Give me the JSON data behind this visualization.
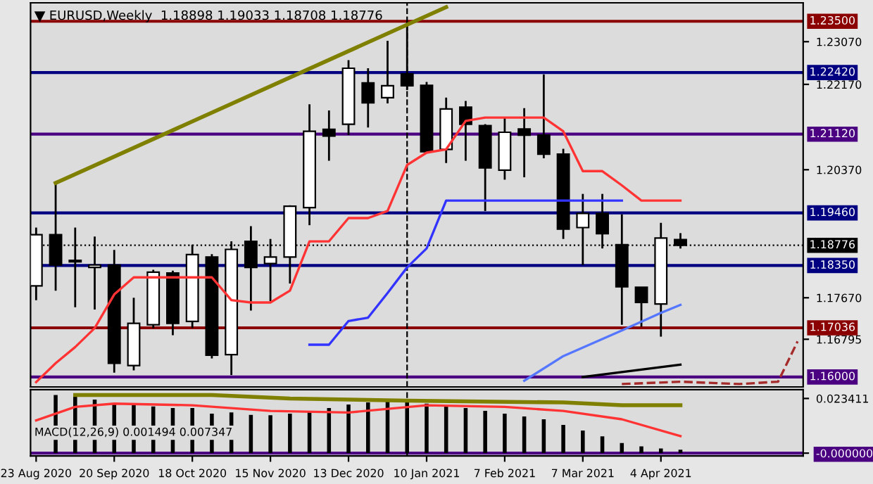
{
  "chart_data": [
    {
      "type": "candlestick",
      "title": "EURUSD,Weekly  1.18898 1.19033 1.18708 1.18776",
      "x": [
        "2020-08-23",
        "2020-08-30",
        "2020-09-06",
        "2020-09-13",
        "2020-09-20",
        "2020-09-27",
        "2020-10-04",
        "2020-10-11",
        "2020-10-18",
        "2020-10-25",
        "2020-11-01",
        "2020-11-08",
        "2020-11-15",
        "2020-11-22",
        "2020-11-29",
        "2020-12-06",
        "2020-12-13",
        "2020-12-20",
        "2020-12-27",
        "2021-01-03",
        "2021-01-10",
        "2021-01-17",
        "2021-01-24",
        "2021-01-31",
        "2021-02-07",
        "2021-02-14",
        "2021-02-21",
        "2021-02-28",
        "2021-03-07",
        "2021-03-14",
        "2021-03-21",
        "2021-03-28",
        "2021-04-04",
        "2021-04-11"
      ],
      "ohlc": [
        [
          1.1792,
          1.1915,
          1.1762,
          1.19
        ],
        [
          1.19,
          1.2009,
          1.1782,
          1.1836
        ],
        [
          1.1846,
          1.1915,
          1.1747,
          1.1843
        ],
        [
          1.1831,
          1.1896,
          1.1742,
          1.1836
        ],
        [
          1.1836,
          1.1868,
          1.1609,
          1.1629
        ],
        [
          1.1624,
          1.1767,
          1.1614,
          1.1713
        ],
        [
          1.171,
          1.1826,
          1.1703,
          1.1821
        ],
        [
          1.1819,
          1.1824,
          1.1688,
          1.1713
        ],
        [
          1.1717,
          1.1879,
          1.1703,
          1.1858
        ],
        [
          1.1853,
          1.1859,
          1.1639,
          1.1646
        ],
        [
          1.1647,
          1.1886,
          1.1604,
          1.1869
        ],
        [
          1.1886,
          1.1918,
          1.174,
          1.1831
        ],
        [
          1.1839,
          1.1891,
          1.176,
          1.1853
        ],
        [
          1.1853,
          1.1962,
          1.1797,
          1.196
        ],
        [
          1.1957,
          1.2175,
          1.192,
          1.2118
        ],
        [
          1.2122,
          1.2162,
          1.2056,
          1.2108
        ],
        [
          1.2133,
          1.2268,
          1.211,
          1.2251
        ],
        [
          1.222,
          1.2251,
          1.2126,
          1.2178
        ],
        [
          1.2189,
          1.2309,
          1.2177,
          1.2214
        ],
        [
          1.2239,
          1.2349,
          1.2205,
          1.2214
        ],
        [
          1.2215,
          1.2222,
          1.2073,
          1.2075
        ],
        [
          1.208,
          1.2189,
          1.2051,
          1.2165
        ],
        [
          1.2169,
          1.2182,
          1.2056,
          1.2133
        ],
        [
          1.213,
          1.2133,
          1.195,
          1.2041
        ],
        [
          1.2036,
          1.2148,
          1.2016,
          1.2116
        ],
        [
          1.2123,
          1.2167,
          1.2021,
          1.211
        ],
        [
          1.211,
          1.2238,
          1.2061,
          1.207
        ],
        [
          1.207,
          1.2081,
          1.1891,
          1.1912
        ],
        [
          1.1915,
          1.1986,
          1.1836,
          1.1945
        ],
        [
          1.1945,
          1.1986,
          1.1871,
          1.1902
        ],
        [
          1.1879,
          1.1943,
          1.171,
          1.179
        ],
        [
          1.1789,
          1.1789,
          1.1706,
          1.1757
        ],
        [
          1.1754,
          1.1925,
          1.1685,
          1.1893
        ],
        [
          1.18898,
          1.19033,
          1.18708,
          1.18776
        ]
      ],
      "series": [
        {
          "type": "line",
          "color": "#ff3333",
          "x": [
            "2020-08-23",
            "2020-08-30",
            "2020-09-06",
            "2020-09-13",
            "2020-09-20",
            "2020-09-27",
            "2020-10-04",
            "2020-10-11",
            "2020-10-18",
            "2020-10-25",
            "2020-11-01",
            "2020-11-08",
            "2020-11-15",
            "2020-11-22",
            "2020-11-29",
            "2020-12-06",
            "2020-12-13",
            "2020-12-20",
            "2020-12-27",
            "2021-01-03",
            "2021-01-10",
            "2021-01-17",
            "2021-01-24",
            "2021-01-31",
            "2021-02-07",
            "2021-02-14",
            "2021-02-21",
            "2021-02-28",
            "2021-03-07",
            "2021-03-14",
            "2021-03-21",
            "2021-03-28",
            "2021-04-04",
            "2021-04-11"
          ],
          "values": [
            1.1589,
            1.1629,
            1.1663,
            1.1703,
            1.1774,
            1.181,
            1.181,
            1.181,
            1.181,
            1.181,
            1.1762,
            1.1757,
            1.1757,
            1.1782,
            1.1886,
            1.1886,
            1.1935,
            1.1935,
            1.195,
            1.2047,
            1.2073,
            1.208,
            1.214,
            1.2147,
            1.2147,
            1.2147,
            1.2147,
            1.2118,
            1.2034,
            1.2034,
            1.2004,
            1.1972,
            1.1972,
            1.1972
          ]
        },
        {
          "type": "line",
          "color": "#3333ff",
          "x": [
            "2020-11-29",
            "2020-12-06",
            "2020-12-13",
            "2020-12-20",
            "2020-12-27",
            "2021-01-03",
            "2021-01-10",
            "2021-01-17",
            "2021-03-21"
          ],
          "values": [
            1.1668,
            1.1668,
            1.1718,
            1.1725,
            1.1777,
            1.1831,
            1.1871,
            1.1972,
            1.1972
          ]
        },
        {
          "type": "line",
          "color": "#5577ff",
          "x": [
            "2021-02-14",
            "2021-02-28",
            "2021-03-21",
            "2021-04-04",
            "2021-04-11"
          ],
          "values": [
            1.1592,
            1.1644,
            1.1698,
            1.1735,
            1.1752
          ]
        },
        {
          "type": "line",
          "color": "#000000",
          "x": [
            "2021-03-07",
            "2021-04-11"
          ],
          "values": [
            1.16,
            1.1626
          ]
        },
        {
          "type": "line",
          "color": "#a52a2a",
          "line_style": "dashed",
          "x": [
            "2021-03-21",
            "2021-04-11",
            "2021-05-02",
            "2021-05-16",
            "2021-05-23"
          ],
          "values": [
            1.1585,
            1.159,
            1.1585,
            1.159,
            1.1675
          ]
        },
        {
          "type": "line",
          "color": "#808000",
          "x": [
            "2020-08-30",
            "2021-01-17"
          ],
          "values": [
            1.2009,
            1.238
          ]
        }
      ],
      "ref_lines": [
        {
          "axis": "y",
          "value": 1.235,
          "label": "1.23500",
          "color": "#8b0000"
        },
        {
          "axis": "y",
          "value": 1.2242,
          "label": "1.22420",
          "color": "#000080"
        },
        {
          "axis": "y",
          "value": 1.2112,
          "label": "1.21120",
          "color": "#4b0082"
        },
        {
          "axis": "y",
          "value": 1.1946,
          "label": "1.19460",
          "color": "#000080"
        },
        {
          "axis": "y",
          "value": 1.18776,
          "label": "1.18776",
          "color": "#000000",
          "line_style": "dotted"
        },
        {
          "axis": "y",
          "value": 1.1835,
          "label": "1.18350",
          "color": "#000080"
        },
        {
          "axis": "y",
          "value": 1.17036,
          "label": "1.17036",
          "color": "#8b0000"
        },
        {
          "axis": "y",
          "value": 1.16,
          "label": "1.16000",
          "color": "#4b0082"
        },
        {
          "axis": "x",
          "value": "2021-01-03",
          "color": "#000000",
          "line_style": "dashed"
        }
      ],
      "xlim": [
        "2020-08-21",
        "2021-05-25"
      ],
      "ylim": [
        1.1579,
        1.2389
      ],
      "yticks": [
        {
          "value": 1.2307,
          "label": "1.23070"
        },
        {
          "value": 1.2217,
          "label": "1.22170"
        },
        {
          "value": 1.2037,
          "label": "1.20370"
        },
        {
          "value": 1.1767,
          "label": "1.17670"
        },
        {
          "value": 1.16795,
          "label": "1.16795"
        }
      ],
      "tick_labels": "y"
    },
    {
      "type": "bar",
      "title": "MACD(12,26,9) 0.001494 0.007347",
      "series": [
        {
          "type": "bar",
          "color": "#000000",
          "x": [
            "2020-08-30",
            "2020-09-06",
            "2020-09-13",
            "2020-09-20",
            "2020-09-27",
            "2020-10-04",
            "2020-10-11",
            "2020-10-18",
            "2020-10-25",
            "2020-11-01",
            "2020-11-08",
            "2020-11-15",
            "2020-11-22",
            "2020-11-29",
            "2020-12-06",
            "2020-12-13",
            "2020-12-20",
            "2020-12-27",
            "2021-01-03",
            "2021-01-10",
            "2021-01-17",
            "2021-01-24",
            "2021-01-31",
            "2021-02-07",
            "2021-02-14",
            "2021-02-21",
            "2021-02-28",
            "2021-03-07",
            "2021-03-14",
            "2021-03-21",
            "2021-03-28",
            "2021-04-04",
            "2021-04-11"
          ],
          "values": [
            0.0249,
            0.0249,
            0.0229,
            0.0212,
            0.0212,
            0.02,
            0.0193,
            0.0193,
            0.0169,
            0.0174,
            0.0164,
            0.0162,
            0.0169,
            0.0181,
            0.0193,
            0.0208,
            0.0217,
            0.0222,
            0.0225,
            0.0212,
            0.0203,
            0.0193,
            0.0181,
            0.0169,
            0.0157,
            0.0145,
            0.0121,
            0.0097,
            0.0072,
            0.0043,
            0.0029,
            0.002,
            0.0015
          ]
        },
        {
          "type": "line",
          "color": "#ff3333",
          "x": [
            "2020-08-23",
            "2020-09-06",
            "2020-09-20",
            "2020-10-18",
            "2020-11-15",
            "2020-12-13",
            "2021-01-10",
            "2021-02-07",
            "2021-02-28",
            "2021-03-21",
            "2021-04-11"
          ],
          "values": [
            0.014,
            0.0198,
            0.0212,
            0.0205,
            0.0181,
            0.0174,
            0.0205,
            0.0198,
            0.0181,
            0.0145,
            0.0073
          ]
        },
        {
          "type": "line",
          "color": "#808000",
          "x": [
            "2020-09-06",
            "2020-10-25",
            "2020-11-22",
            "2021-01-03",
            "2021-02-28",
            "2021-03-21",
            "2021-04-11"
          ],
          "values": [
            0.0249,
            0.0249,
            0.0234,
            0.0225,
            0.0217,
            0.0205,
            0.0205
          ]
        }
      ],
      "ref_lines": [
        {
          "axis": "y",
          "value": 0,
          "color": "#4b0082"
        },
        {
          "axis": "x",
          "value": "2021-01-03",
          "color": "#000000",
          "line_style": "dashed"
        }
      ],
      "xlim": [
        "2020-08-21",
        "2021-05-25"
      ],
      "ylim": [
        -0.0012,
        0.0272
      ],
      "yticks": [
        {
          "value": 0.023411,
          "label": "0.023411"
        },
        {
          "value": 0,
          "label": "-0.000000"
        }
      ],
      "xticks": [
        {
          "value": "2020-08-23",
          "label": "23 Aug 2020"
        },
        {
          "value": "2020-09-20",
          "label": "20 Sep 2020"
        },
        {
          "value": "2020-10-18",
          "label": "18 Oct 2020"
        },
        {
          "value": "2020-11-15",
          "label": "15 Nov 2020"
        },
        {
          "value": "2020-12-13",
          "label": "13 Dec 2020"
        },
        {
          "value": "2021-01-10",
          "label": "10 Jan 2021"
        },
        {
          "value": "2021-02-07",
          "label": "7 Feb 2021"
        },
        {
          "value": "2021-03-07",
          "label": "7 Mar 2021"
        },
        {
          "value": "2021-04-04",
          "label": "4 Apr 2021"
        }
      ]
    }
  ]
}
